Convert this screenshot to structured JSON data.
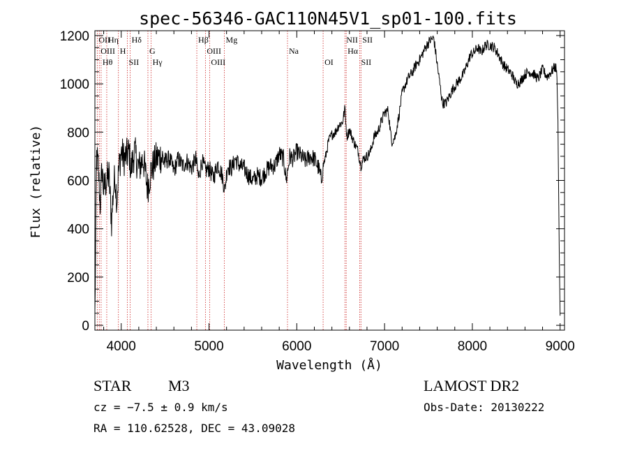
{
  "chart_data": {
    "type": "line",
    "title": "spec-56346-GAC110N45V1_sp01-100.fits",
    "xlabel": "Wavelength (Å)",
    "ylabel": "Flux (relative)",
    "xlim": [
      3700,
      9050
    ],
    "ylim": [
      -20,
      1220
    ],
    "xticks": [
      4000,
      5000,
      6000,
      7000,
      8000,
      9000
    ],
    "yticks": [
      0,
      200,
      400,
      600,
      800,
      1000,
      1200
    ],
    "anchors": [
      [
        3700,
        40
      ],
      [
        3720,
        700
      ],
      [
        3740,
        650
      ],
      [
        3760,
        500
      ],
      [
        3780,
        650
      ],
      [
        3800,
        560
      ],
      [
        3830,
        600
      ],
      [
        3860,
        620
      ],
      [
        3890,
        430
      ],
      [
        3910,
        560
      ],
      [
        3930,
        620
      ],
      [
        3950,
        520
      ],
      [
        3970,
        640
      ],
      [
        4000,
        720
      ],
      [
        4030,
        690
      ],
      [
        4060,
        700
      ],
      [
        4090,
        720
      ],
      [
        4110,
        640
      ],
      [
        4150,
        720
      ],
      [
        4200,
        650
      ],
      [
        4250,
        690
      ],
      [
        4300,
        570
      ],
      [
        4340,
        640
      ],
      [
        4400,
        690
      ],
      [
        4450,
        700
      ],
      [
        4500,
        680
      ],
      [
        4550,
        690
      ],
      [
        4600,
        640
      ],
      [
        4650,
        690
      ],
      [
        4700,
        660
      ],
      [
        4750,
        680
      ],
      [
        4800,
        650
      ],
      [
        4850,
        690
      ],
      [
        4880,
        610
      ],
      [
        4920,
        680
      ],
      [
        4960,
        640
      ],
      [
        5000,
        650
      ],
      [
        5050,
        610
      ],
      [
        5100,
        670
      ],
      [
        5150,
        620
      ],
      [
        5180,
        560
      ],
      [
        5210,
        660
      ],
      [
        5260,
        650
      ],
      [
        5300,
        690
      ],
      [
        5350,
        660
      ],
      [
        5400,
        650
      ],
      [
        5450,
        620
      ],
      [
        5500,
        600
      ],
      [
        5550,
        620
      ],
      [
        5600,
        610
      ],
      [
        5650,
        640
      ],
      [
        5700,
        660
      ],
      [
        5750,
        660
      ],
      [
        5800,
        710
      ],
      [
        5850,
        690
      ],
      [
        5880,
        600
      ],
      [
        5920,
        700
      ],
      [
        5960,
        690
      ],
      [
        6000,
        720
      ],
      [
        6050,
        700
      ],
      [
        6100,
        680
      ],
      [
        6150,
        700
      ],
      [
        6200,
        690
      ],
      [
        6250,
        650
      ],
      [
        6280,
        600
      ],
      [
        6300,
        660
      ],
      [
        6330,
        700
      ],
      [
        6360,
        760
      ],
      [
        6400,
        790
      ],
      [
        6440,
        800
      ],
      [
        6480,
        830
      ],
      [
        6520,
        840
      ],
      [
        6550,
        900
      ],
      [
        6570,
        780
      ],
      [
        6600,
        810
      ],
      [
        6650,
        760
      ],
      [
        6700,
        720
      ],
      [
        6730,
        660
      ],
      [
        6760,
        690
      ],
      [
        6800,
        700
      ],
      [
        6840,
        720
      ],
      [
        6880,
        780
      ],
      [
        6920,
        800
      ],
      [
        6960,
        840
      ],
      [
        7000,
        880
      ],
      [
        7040,
        890
      ],
      [
        7080,
        760
      ],
      [
        7120,
        780
      ],
      [
        7160,
        860
      ],
      [
        7200,
        960
      ],
      [
        7240,
        1000
      ],
      [
        7280,
        1030
      ],
      [
        7320,
        1050
      ],
      [
        7360,
        1080
      ],
      [
        7400,
        1100
      ],
      [
        7440,
        1130
      ],
      [
        7480,
        1160
      ],
      [
        7520,
        1180
      ],
      [
        7560,
        1190
      ],
      [
        7600,
        1080
      ],
      [
        7630,
        1000
      ],
      [
        7660,
        920
      ],
      [
        7700,
        920
      ],
      [
        7740,
        950
      ],
      [
        7780,
        980
      ],
      [
        7820,
        1000
      ],
      [
        7860,
        1020
      ],
      [
        7900,
        1040
      ],
      [
        7940,
        1080
      ],
      [
        7980,
        1120
      ],
      [
        8020,
        1130
      ],
      [
        8060,
        1150
      ],
      [
        8100,
        1130
      ],
      [
        8150,
        1160
      ],
      [
        8200,
        1160
      ],
      [
        8250,
        1150
      ],
      [
        8300,
        1120
      ],
      [
        8350,
        1080
      ],
      [
        8400,
        1060
      ],
      [
        8450,
        1040
      ],
      [
        8500,
        1000
      ],
      [
        8550,
        1010
      ],
      [
        8600,
        1040
      ],
      [
        8650,
        1050
      ],
      [
        8700,
        1040
      ],
      [
        8750,
        1020
      ],
      [
        8800,
        1060
      ],
      [
        8850,
        1030
      ],
      [
        8900,
        1050
      ],
      [
        8940,
        1070
      ],
      [
        8960,
        1060
      ],
      [
        8975,
        850
      ],
      [
        8990,
        300
      ],
      [
        9000,
        40
      ]
    ],
    "line_markers": [
      {
        "wave": 3727,
        "label": "OII"
      },
      {
        "wave": 3750,
        "label": "OIII"
      },
      {
        "wave": 3771,
        "label": "Hθ"
      },
      {
        "wave": 3835,
        "label": "Hη"
      },
      {
        "wave": 3968,
        "label": "H"
      },
      {
        "wave": 4070,
        "label": "SII"
      },
      {
        "wave": 4102,
        "label": "Hδ"
      },
      {
        "wave": 4304,
        "label": "G"
      },
      {
        "wave": 4341,
        "label": "Hγ"
      },
      {
        "wave": 4861,
        "label": "Hβ"
      },
      {
        "wave": 4959,
        "label": "OIII"
      },
      {
        "wave": 5007,
        "label": "OIII"
      },
      {
        "wave": 5175,
        "label": "Mg"
      },
      {
        "wave": 5894,
        "label": "Na"
      },
      {
        "wave": 6300,
        "label": "OI"
      },
      {
        "wave": 6548,
        "label": "NII"
      },
      {
        "wave": 6563,
        "label": "Hα"
      },
      {
        "wave": 6717,
        "label": "SII"
      },
      {
        "wave": 6731,
        "label": "SII"
      }
    ]
  },
  "info": {
    "object_class": "STAR",
    "subclass": "M3",
    "survey": "LAMOST DR2",
    "cz": "cz = −7.5 ± 0.9 km/s",
    "obs_date": "Obs-Date: 20130222",
    "coords": "RA = 110.62528, DEC =  43.09028"
  },
  "colors": {
    "line_marker": "#cc2222",
    "spectrum": "#000000"
  }
}
